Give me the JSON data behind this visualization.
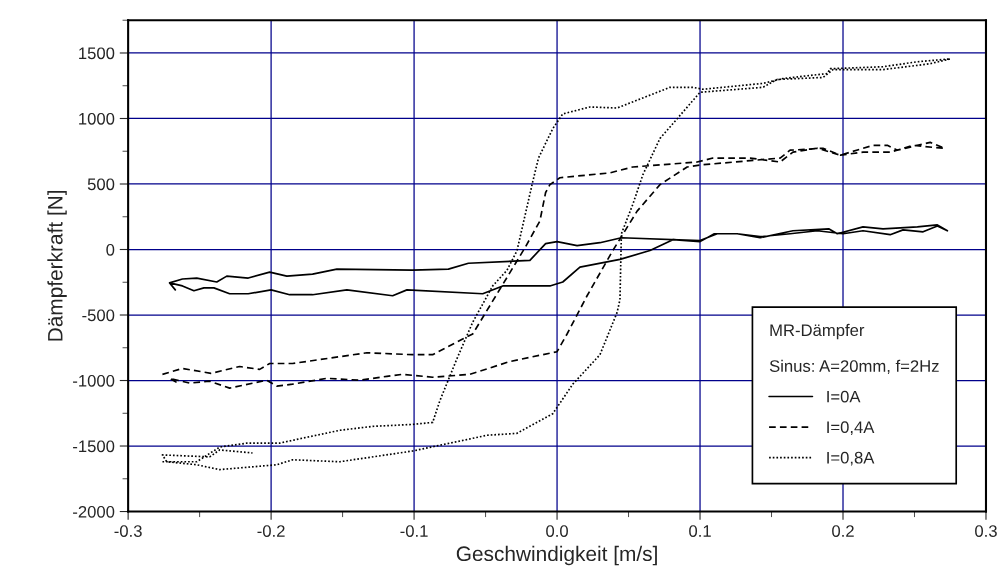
{
  "chart_data": {
    "type": "line",
    "xlabel": "Geschwindigkeit [m/s]",
    "ylabel": "Dämpferkraft [N]",
    "legend_title": "MR-Dämpfer",
    "annotations": [
      "Sinus: A=20mm, f=2Hz"
    ],
    "xlim": [
      -0.3,
      0.3
    ],
    "xticks": [
      {
        "value": -0.3,
        "label": "-0.3"
      },
      {
        "value": -0.2,
        "label": "-0.2"
      },
      {
        "value": -0.1,
        "label": "-0.1"
      },
      {
        "value": 0.0,
        "label": "0.0"
      },
      {
        "value": 0.1,
        "label": "0.1"
      },
      {
        "value": 0.2,
        "label": "0.2"
      },
      {
        "value": 0.3,
        "label": "0.3"
      }
    ],
    "ylim": [
      -2000,
      1750
    ],
    "yticks": [
      {
        "value": -2000,
        "label": "-2000"
      },
      {
        "value": -1500,
        "label": "-1500"
      },
      {
        "value": -1000,
        "label": "-1000"
      },
      {
        "value": -500,
        "label": "-500"
      },
      0,
      500,
      1000,
      1500
    ],
    "grid": true,
    "legend": "bottom right",
    "marker": "none",
    "series": [
      {
        "name": "I=0A",
        "color": "#000000",
        "line_style": "solid",
        "x": [
          -0.271,
          -0.262,
          -0.252,
          -0.238,
          -0.231,
          -0.216,
          -0.201,
          -0.189,
          -0.171,
          -0.154,
          -0.101,
          -0.076,
          -0.062,
          -0.019,
          -0.008,
          0.0,
          0.014,
          0.03,
          0.045,
          0.1,
          0.112,
          0.126,
          0.142,
          0.165,
          0.19,
          0.196,
          0.214,
          0.228,
          0.252,
          0.266,
          0.273,
          0.266,
          0.256,
          0.242,
          0.233,
          0.214,
          0.2,
          0.182,
          0.163,
          0.142,
          0.126,
          0.11,
          0.1,
          0.081,
          0.065,
          0.044,
          0.016,
          0.004,
          -0.005,
          -0.038,
          -0.052,
          -0.105,
          -0.115,
          -0.147,
          -0.171,
          -0.187,
          -0.2,
          -0.216,
          -0.229,
          -0.24,
          -0.247,
          -0.254,
          -0.262,
          -0.271,
          -0.267
        ],
        "values": [
          -255,
          -225,
          -218,
          -248,
          -203,
          -218,
          -173,
          -203,
          -188,
          -150,
          -158,
          -150,
          -105,
          -83,
          45,
          60,
          30,
          52,
          90,
          68,
          120,
          120,
          90,
          143,
          158,
          120,
          173,
          158,
          173,
          188,
          143,
          180,
          135,
          150,
          113,
          143,
          120,
          143,
          120,
          98,
          120,
          120,
          60,
          75,
          -8,
          -75,
          -135,
          -248,
          -278,
          -278,
          -338,
          -308,
          -353,
          -308,
          -345,
          -345,
          -308,
          -338,
          -338,
          -293,
          -293,
          -315,
          -278,
          -255,
          -308
        ]
      },
      {
        "name": "I=0,4A",
        "color": "#000000",
        "line_style": "dashed",
        "x": [
          -0.276,
          -0.262,
          -0.242,
          -0.222,
          -0.208,
          -0.201,
          -0.185,
          -0.133,
          -0.101,
          -0.087,
          -0.066,
          -0.059,
          -0.029,
          -0.022,
          -0.012,
          -0.008,
          -0.005,
          0.002,
          0.037,
          0.053,
          0.098,
          0.109,
          0.135,
          0.156,
          0.165,
          0.182,
          0.198,
          0.221,
          0.231,
          0.238,
          0.261,
          0.271,
          0.263,
          0.249,
          0.233,
          0.214,
          0.198,
          0.186,
          0.163,
          0.156,
          0.1,
          0.091,
          0.072,
          0.056,
          0.039,
          0.021,
          0.007,
          0.0,
          -0.033,
          -0.061,
          -0.087,
          -0.108,
          -0.119,
          -0.138,
          -0.161,
          -0.185,
          -0.196,
          -0.203,
          -0.229,
          -0.243,
          -0.257,
          -0.271,
          -0.264
        ],
        "values": [
          -953,
          -908,
          -945,
          -893,
          -915,
          -870,
          -870,
          -788,
          -803,
          -803,
          -683,
          -645,
          -105,
          22,
          218,
          435,
          495,
          548,
          585,
          630,
          668,
          698,
          698,
          668,
          743,
          773,
          720,
          795,
          795,
          758,
          818,
          773,
          780,
          795,
          743,
          743,
          720,
          773,
          758,
          698,
          645,
          630,
          495,
          293,
          -8,
          -353,
          -645,
          -780,
          -855,
          -953,
          -975,
          -953,
          -968,
          -998,
          -983,
          -1028,
          -1043,
          -998,
          -1058,
          -1005,
          -1020,
          -983,
          -1028
        ]
      },
      {
        "name": "I=0,8A",
        "color": "#000000",
        "line_style": "dotted",
        "x": [
          -0.276,
          -0.252,
          -0.236,
          -0.217,
          -0.194,
          -0.175,
          -0.152,
          -0.129,
          -0.101,
          -0.087,
          -0.082,
          -0.07,
          -0.059,
          -0.045,
          -0.035,
          -0.028,
          -0.017,
          -0.013,
          -0.003,
          0.004,
          0.023,
          0.042,
          0.079,
          0.095,
          0.102,
          0.144,
          0.158,
          0.189,
          0.191,
          0.228,
          0.252,
          0.275,
          0.261,
          0.228,
          0.193,
          0.186,
          0.154,
          0.144,
          0.1,
          0.084,
          0.072,
          0.06,
          0.053,
          0.045,
          0.044,
          0.042,
          0.03,
          0.011,
          -0.003,
          -0.028,
          -0.049,
          -0.101,
          -0.152,
          -0.185,
          -0.196,
          -0.236,
          -0.252,
          -0.273,
          -0.276,
          -0.243,
          -0.236,
          -0.213
        ],
        "values": [
          -1620,
          -1620,
          -1508,
          -1478,
          -1478,
          -1433,
          -1380,
          -1350,
          -1335,
          -1320,
          -1155,
          -833,
          -555,
          -278,
          -158,
          -8,
          518,
          698,
          923,
          1035,
          1088,
          1080,
          1238,
          1238,
          1223,
          1268,
          1305,
          1343,
          1380,
          1395,
          1433,
          1455,
          1418,
          1373,
          1373,
          1313,
          1298,
          1238,
          1200,
          998,
          848,
          570,
          345,
          120,
          -383,
          -480,
          -803,
          -1028,
          -1253,
          -1403,
          -1418,
          -1538,
          -1620,
          -1605,
          -1643,
          -1680,
          -1643,
          -1620,
          -1568,
          -1583,
          -1530,
          -1553
        ]
      }
    ]
  }
}
